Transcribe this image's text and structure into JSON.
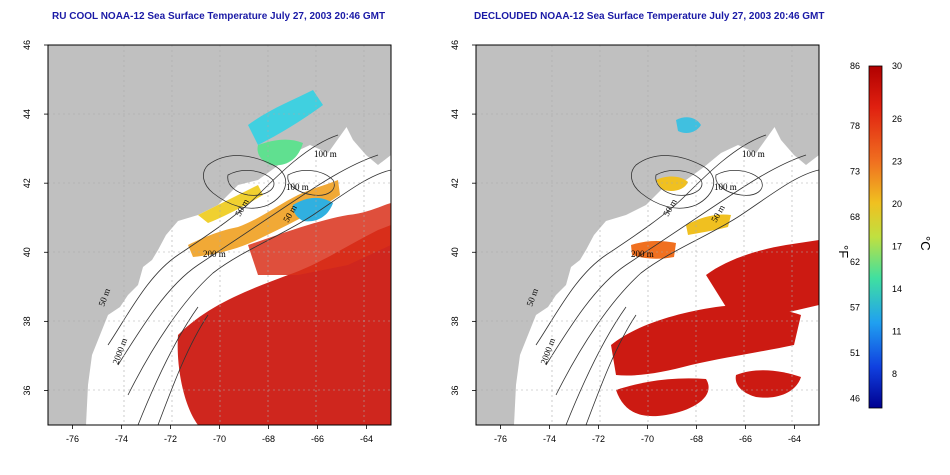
{
  "titles": {
    "left": "RU COOL NOAA-12 Sea Surface Temperature July 27, 2003 20:46 GMT",
    "right": "DECLOUDED NOAA-12 Sea Surface Temperature July 27, 2003 20:46 GMT"
  },
  "axes": {
    "lat_ticks": [
      36,
      38,
      40,
      42,
      44,
      46
    ],
    "lon_ticks": [
      -76,
      -74,
      -72,
      -70,
      -68,
      -66,
      -64
    ],
    "lat_range": [
      35,
      46
    ],
    "lon_range": [
      -77,
      -63
    ]
  },
  "depth_labels": [
    "100 m",
    "100 m",
    "50 m",
    "50 m",
    "200 m",
    "50 m",
    "2000 m"
  ],
  "colorbar": {
    "fahrenheit_labels": [
      "86",
      "78",
      "73",
      "68",
      "62",
      "57",
      "51",
      "46"
    ],
    "celsius_labels": [
      "30",
      "26",
      "23",
      "20",
      "17",
      "14",
      "11",
      "8"
    ],
    "unit_f": "°F",
    "unit_c": "°C",
    "colors": [
      "#b00000",
      "#e02010",
      "#f07020",
      "#f0c020",
      "#c0e040",
      "#40e0a0",
      "#20a0f0",
      "#1040e0",
      "#000090"
    ]
  },
  "colors": {
    "land": "#c0c0c0",
    "ocean": "#ffffff",
    "warm": "#cc1a12",
    "title": "#1a1aa6"
  }
}
